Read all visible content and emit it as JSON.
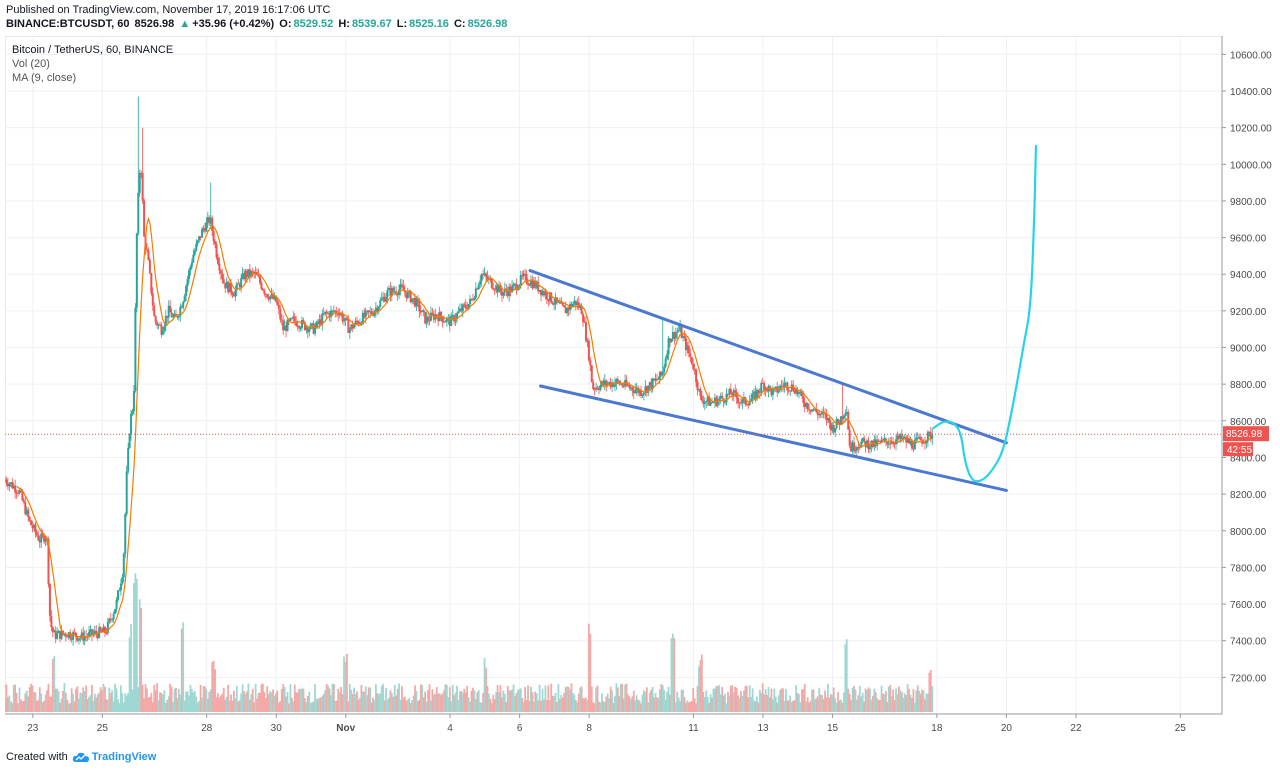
{
  "header": {
    "published": "Published on TradingView.com, November 17, 2019 16:17:06 UTC",
    "symbol": "BINANCE:BTCUSDT, 60",
    "last": "8526.98",
    "change": "+35.96 (+0.42%)",
    "open_label": "O:",
    "open": "8529.52",
    "high_label": "H:",
    "high": "8539.67",
    "low_label": "L:",
    "low": "8525.16",
    "close_label": "C:",
    "close": "8526.98"
  },
  "legend": {
    "title": "Bitcoin / TetherUS, 60, BINANCE",
    "volume": "Vol (20)",
    "ma": "MA (9, close)"
  },
  "footer": {
    "created": "Created with",
    "brand": "TradingView"
  },
  "colors": {
    "up": "#26a69a",
    "down": "#ef5350",
    "ma": "#f57c00",
    "trendline": "#4b78d0",
    "projection": "#26d4e6",
    "price_tag": "#ef5350"
  },
  "chart_data": {
    "type": "candlestick",
    "title": "Bitcoin / TetherUS, 60, BINANCE",
    "y_ticks": [
      7200,
      7400,
      7600,
      7800,
      8000,
      8200,
      8400,
      8600,
      8800,
      9000,
      9200,
      9400,
      9600,
      9800,
      10000,
      10200,
      10400,
      10600
    ],
    "y_tick_labels": [
      "7200.00",
      "7400.00",
      "7600.00",
      "7800.00",
      "8000.00",
      "8200.00",
      "8400.00",
      "8600.00",
      "8800.00",
      "9000.00",
      "9200.00",
      "9400.00",
      "9600.00",
      "9800.00",
      "10000.00",
      "10200.00",
      "10400.00",
      "10600.00"
    ],
    "ylim": [
      7000,
      10700
    ],
    "x_ticks": [
      {
        "label": "23",
        "day": 0
      },
      {
        "label": "25",
        "day": 2
      },
      {
        "label": "28",
        "day": 5
      },
      {
        "label": "30",
        "day": 7
      },
      {
        "label": "Nov",
        "day": 9
      },
      {
        "label": "4",
        "day": 12
      },
      {
        "label": "6",
        "day": 14
      },
      {
        "label": "8",
        "day": 16
      },
      {
        "label": "11",
        "day": 19
      },
      {
        "label": "13",
        "day": 21
      },
      {
        "label": "15",
        "day": 23
      },
      {
        "label": "18",
        "day": 26
      },
      {
        "label": "20",
        "day": 28
      },
      {
        "label": "22",
        "day": 30
      },
      {
        "label": "25",
        "day": 33
      }
    ],
    "xlim_days": [
      -0.8,
      34.2
    ],
    "price_path": [
      [
        -0.8,
        8280
      ],
      [
        -0.4,
        8220
      ],
      [
        -0.1,
        8050
      ],
      [
        0.2,
        7950
      ],
      [
        0.4,
        7980
      ],
      [
        0.5,
        7500
      ],
      [
        0.6,
        7430
      ],
      [
        1.0,
        7440
      ],
      [
        1.4,
        7420
      ],
      [
        1.8,
        7440
      ],
      [
        2.1,
        7450
      ],
      [
        2.4,
        7600
      ],
      [
        2.6,
        7800
      ],
      [
        2.7,
        8300
      ],
      [
        2.8,
        8600
      ],
      [
        2.9,
        8700
      ],
      [
        3.0,
        9700
      ],
      [
        3.1,
        10050
      ],
      [
        3.2,
        9600
      ],
      [
        3.3,
        9500
      ],
      [
        3.5,
        9150
      ],
      [
        3.7,
        9100
      ],
      [
        3.9,
        9200
      ],
      [
        4.1,
        9150
      ],
      [
        4.3,
        9250
      ],
      [
        4.6,
        9500
      ],
      [
        4.9,
        9650
      ],
      [
        5.1,
        9700
      ],
      [
        5.3,
        9500
      ],
      [
        5.5,
        9350
      ],
      [
        5.8,
        9300
      ],
      [
        6.1,
        9400
      ],
      [
        6.4,
        9400
      ],
      [
        6.7,
        9300
      ],
      [
        7.0,
        9250
      ],
      [
        7.2,
        9100
      ],
      [
        7.5,
        9150
      ],
      [
        7.8,
        9120
      ],
      [
        8.1,
        9100
      ],
      [
        8.4,
        9180
      ],
      [
        8.8,
        9200
      ],
      [
        9.1,
        9100
      ],
      [
        9.4,
        9150
      ],
      [
        9.8,
        9200
      ],
      [
        10.2,
        9300
      ],
      [
        10.6,
        9320
      ],
      [
        11.0,
        9250
      ],
      [
        11.3,
        9150
      ],
      [
        11.6,
        9180
      ],
      [
        12.0,
        9140
      ],
      [
        12.3,
        9200
      ],
      [
        12.6,
        9250
      ],
      [
        12.9,
        9400
      ],
      [
        13.2,
        9350
      ],
      [
        13.5,
        9300
      ],
      [
        13.8,
        9320
      ],
      [
        14.1,
        9380
      ],
      [
        14.4,
        9350
      ],
      [
        14.7,
        9300
      ],
      [
        15.0,
        9250
      ],
      [
        15.3,
        9200
      ],
      [
        15.6,
        9250
      ],
      [
        15.8,
        9200
      ],
      [
        16.0,
        8950
      ],
      [
        16.1,
        8780
      ],
      [
        16.4,
        8800
      ],
      [
        16.8,
        8810
      ],
      [
        17.2,
        8780
      ],
      [
        17.5,
        8760
      ],
      [
        17.8,
        8800
      ],
      [
        18.1,
        8850
      ],
      [
        18.3,
        9050
      ],
      [
        18.6,
        9100
      ],
      [
        18.8,
        9000
      ],
      [
        19.0,
        8900
      ],
      [
        19.2,
        8720
      ],
      [
        19.5,
        8700
      ],
      [
        19.8,
        8720
      ],
      [
        20.1,
        8750
      ],
      [
        20.4,
        8700
      ],
      [
        20.7,
        8720
      ],
      [
        21.0,
        8800
      ],
      [
        21.3,
        8750
      ],
      [
        21.6,
        8800
      ],
      [
        21.9,
        8780
      ],
      [
        22.2,
        8700
      ],
      [
        22.5,
        8650
      ],
      [
        22.8,
        8620
      ],
      [
        23.0,
        8560
      ],
      [
        23.2,
        8600
      ],
      [
        23.4,
        8680
      ],
      [
        23.5,
        8450
      ],
      [
        23.8,
        8480
      ],
      [
        24.2,
        8470
      ],
      [
        24.6,
        8490
      ],
      [
        25.0,
        8500
      ],
      [
        25.3,
        8470
      ],
      [
        25.6,
        8500
      ],
      [
        25.9,
        8530
      ]
    ],
    "vol_spikes": [
      {
        "day": 2.8,
        "level": 0.55
      },
      {
        "day": 2.95,
        "level": 0.95
      },
      {
        "day": 3.1,
        "level": 0.75
      },
      {
        "day": 4.3,
        "level": 0.6
      },
      {
        "day": 5.2,
        "level": 0.35
      },
      {
        "day": 0.6,
        "level": 0.35
      },
      {
        "day": 9.0,
        "level": 0.4
      },
      {
        "day": 13.0,
        "level": 0.35
      },
      {
        "day": 16.0,
        "level": 0.55
      },
      {
        "day": 18.4,
        "level": 0.5
      },
      {
        "day": 19.2,
        "level": 0.35
      },
      {
        "day": 23.4,
        "level": 0.45
      },
      {
        "day": 25.8,
        "level": 0.25
      }
    ],
    "ma_period": 9,
    "trendlines": [
      {
        "name": "upper",
        "from": {
          "day": 14.3,
          "price": 9420
        },
        "to": {
          "day": 28.0,
          "price": 8480
        }
      },
      {
        "name": "lower",
        "from": {
          "day": 14.6,
          "price": 8790
        },
        "to": {
          "day": 28.0,
          "price": 8220
        }
      }
    ],
    "projection_path": [
      [
        25.9,
        8560
      ],
      [
        26.2,
        8600
      ],
      [
        26.5,
        8590
      ],
      [
        26.7,
        8530
      ],
      [
        26.8,
        8380
      ],
      [
        27.0,
        8270
      ],
      [
        27.3,
        8270
      ],
      [
        27.6,
        8330
      ],
      [
        27.9,
        8430
      ],
      [
        28.1,
        8600
      ],
      [
        28.3,
        8800
      ],
      [
        28.5,
        9020
      ],
      [
        28.7,
        9220
      ],
      [
        28.8,
        9700
      ],
      [
        28.85,
        10100
      ]
    ],
    "last_price": 8526.98,
    "last_price_label": "8526.98",
    "countdown": "42:55"
  }
}
